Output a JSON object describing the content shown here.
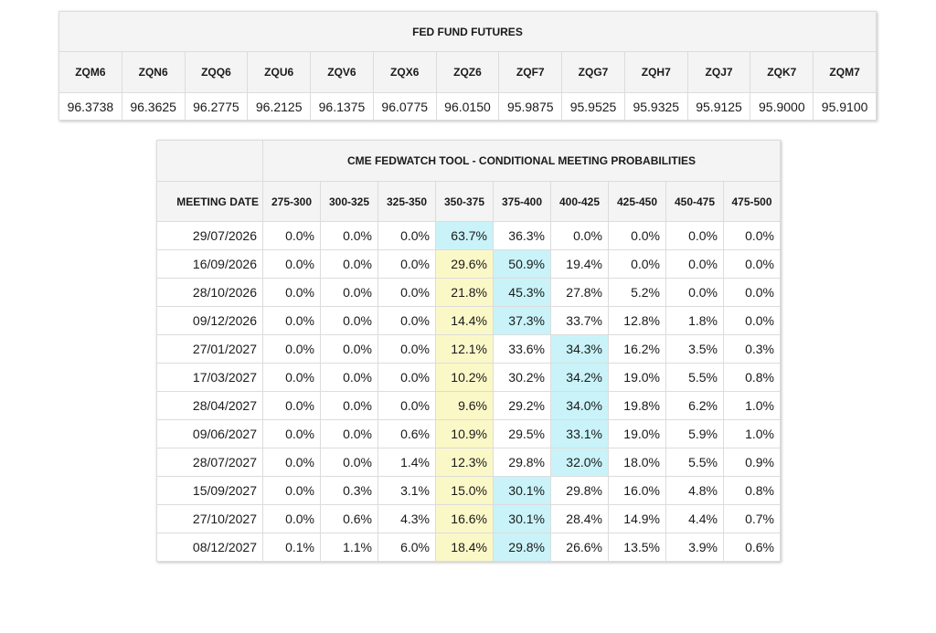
{
  "futures": {
    "title": "FED FUND FUTURES",
    "contracts": [
      {
        "code": "ZQM6",
        "price": "96.3738"
      },
      {
        "code": "ZQN6",
        "price": "96.3625"
      },
      {
        "code": "ZQQ6",
        "price": "96.2775"
      },
      {
        "code": "ZQU6",
        "price": "96.2125"
      },
      {
        "code": "ZQV6",
        "price": "96.1375"
      },
      {
        "code": "ZQX6",
        "price": "96.0775"
      },
      {
        "code": "ZQZ6",
        "price": "96.0150"
      },
      {
        "code": "ZQF7",
        "price": "95.9875"
      },
      {
        "code": "ZQG7",
        "price": "95.9525"
      },
      {
        "code": "ZQH7",
        "price": "95.9325"
      },
      {
        "code": "ZQJ7",
        "price": "95.9125"
      },
      {
        "code": "ZQK7",
        "price": "95.9000"
      },
      {
        "code": "ZQM7",
        "price": "95.9100"
      }
    ]
  },
  "fedwatch": {
    "title": "CME FEDWATCH TOOL - CONDITIONAL MEETING PROBABILITIES",
    "date_header": "MEETING DATE",
    "ranges": [
      "275-300",
      "300-325",
      "325-350",
      "350-375",
      "375-400",
      "400-425",
      "425-450",
      "450-475",
      "475-500"
    ],
    "colors": {
      "highlight_yellow": "#fbf8c8",
      "highlight_cyan": "#c9f3f8"
    },
    "rows": [
      {
        "date": "29/07/2026",
        "values": [
          "0.0%",
          "0.0%",
          "0.0%",
          "63.7%",
          "36.3%",
          "0.0%",
          "0.0%",
          "0.0%",
          "0.0%"
        ],
        "cyan_col": 3
      },
      {
        "date": "16/09/2026",
        "values": [
          "0.0%",
          "0.0%",
          "0.0%",
          "29.6%",
          "50.9%",
          "19.4%",
          "0.0%",
          "0.0%",
          "0.0%"
        ],
        "cyan_col": 4
      },
      {
        "date": "28/10/2026",
        "values": [
          "0.0%",
          "0.0%",
          "0.0%",
          "21.8%",
          "45.3%",
          "27.8%",
          "5.2%",
          "0.0%",
          "0.0%"
        ],
        "cyan_col": 4
      },
      {
        "date": "09/12/2026",
        "values": [
          "0.0%",
          "0.0%",
          "0.0%",
          "14.4%",
          "37.3%",
          "33.7%",
          "12.8%",
          "1.8%",
          "0.0%"
        ],
        "cyan_col": 4
      },
      {
        "date": "27/01/2027",
        "values": [
          "0.0%",
          "0.0%",
          "0.0%",
          "12.1%",
          "33.6%",
          "34.3%",
          "16.2%",
          "3.5%",
          "0.3%"
        ],
        "cyan_col": 5
      },
      {
        "date": "17/03/2027",
        "values": [
          "0.0%",
          "0.0%",
          "0.0%",
          "10.2%",
          "30.2%",
          "34.2%",
          "19.0%",
          "5.5%",
          "0.8%"
        ],
        "cyan_col": 5
      },
      {
        "date": "28/04/2027",
        "values": [
          "0.0%",
          "0.0%",
          "0.0%",
          "9.6%",
          "29.2%",
          "34.0%",
          "19.8%",
          "6.2%",
          "1.0%"
        ],
        "cyan_col": 5
      },
      {
        "date": "09/06/2027",
        "values": [
          "0.0%",
          "0.0%",
          "0.6%",
          "10.9%",
          "29.5%",
          "33.1%",
          "19.0%",
          "5.9%",
          "1.0%"
        ],
        "cyan_col": 5
      },
      {
        "date": "28/07/2027",
        "values": [
          "0.0%",
          "0.0%",
          "1.4%",
          "12.3%",
          "29.8%",
          "32.0%",
          "18.0%",
          "5.5%",
          "0.9%"
        ],
        "cyan_col": 5
      },
      {
        "date": "15/09/2027",
        "values": [
          "0.0%",
          "0.3%",
          "3.1%",
          "15.0%",
          "30.1%",
          "29.8%",
          "16.0%",
          "4.8%",
          "0.8%"
        ],
        "cyan_col": 4
      },
      {
        "date": "27/10/2027",
        "values": [
          "0.0%",
          "0.6%",
          "4.3%",
          "16.6%",
          "30.1%",
          "28.4%",
          "14.9%",
          "4.4%",
          "0.7%"
        ],
        "cyan_col": 4
      },
      {
        "date": "08/12/2027",
        "values": [
          "0.1%",
          "1.1%",
          "6.0%",
          "18.4%",
          "29.8%",
          "26.6%",
          "13.5%",
          "3.9%",
          "0.6%"
        ],
        "cyan_col": 4
      }
    ],
    "yellow_col": 3
  }
}
